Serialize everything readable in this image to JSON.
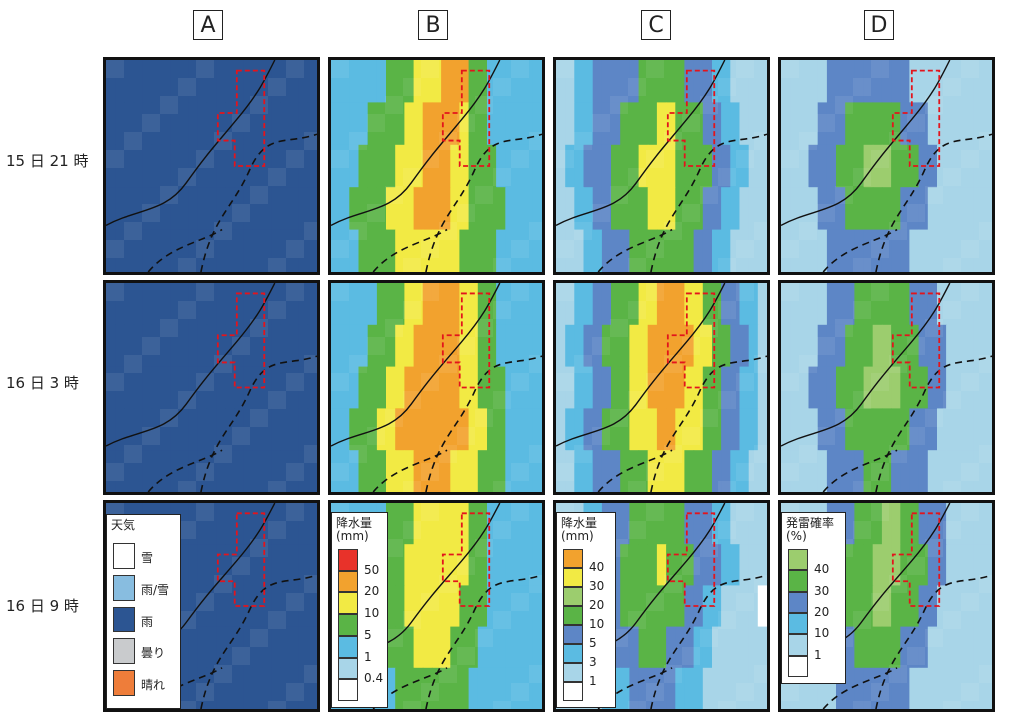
{
  "columns": [
    {
      "label": "A"
    },
    {
      "label": "B"
    },
    {
      "label": "C"
    },
    {
      "label": "D"
    }
  ],
  "rows": [
    {
      "label": "15 日 21 時"
    },
    {
      "label": "16 日 3 時"
    },
    {
      "label": "16 日 9 時"
    }
  ],
  "legends": {
    "A": {
      "title": "天気",
      "items": [
        {
          "label": "雪",
          "color": "#ffffff"
        },
        {
          "label": "雨/雪",
          "color": "#88bde0"
        },
        {
          "label": "雨",
          "color": "#2c5592"
        },
        {
          "label": "曇り",
          "color": "#c9cbcd"
        },
        {
          "label": "晴れ",
          "color": "#ee7d3a"
        }
      ]
    },
    "B": {
      "title": "降水量\n(mm)",
      "items": [
        {
          "label": "50",
          "color": "#e8322a"
        },
        {
          "label": "20",
          "color": "#f2a22e"
        },
        {
          "label": "10",
          "color": "#f2ea44"
        },
        {
          "label": "5",
          "color": "#5ab446"
        },
        {
          "label": "1",
          "color": "#5bbbe2"
        },
        {
          "label": "0.4",
          "color": "#a8d5e8"
        },
        {
          "label": "",
          "color": "#ffffff"
        }
      ]
    },
    "C": {
      "title": "降水量\n(mm)",
      "items": [
        {
          "label": "40",
          "color": "#f2a22e"
        },
        {
          "label": "30",
          "color": "#f2ea44"
        },
        {
          "label": "20",
          "color": "#9ccd6e"
        },
        {
          "label": "10",
          "color": "#5ab446"
        },
        {
          "label": "5",
          "color": "#5d86c6"
        },
        {
          "label": "3",
          "color": "#5bbbe2"
        },
        {
          "label": "1",
          "color": "#a8d5e8"
        },
        {
          "label": "",
          "color": "#ffffff"
        }
      ]
    },
    "D": {
      "title": "発雷確率\n(%)",
      "items": [
        {
          "label": "40",
          "color": "#9ccd6e"
        },
        {
          "label": "30",
          "color": "#5ab446"
        },
        {
          "label": "20",
          "color": "#5d86c6"
        },
        {
          "label": "10",
          "color": "#5bbbe2"
        },
        {
          "label": "1",
          "color": "#a8d5e8"
        },
        {
          "label": "",
          "color": "#ffffff"
        }
      ]
    }
  },
  "maps": {
    "A": [
      [
        "RRRRRRRRRRRRRRRRRRRRRRR",
        "RRRRRRRRRRRRRRRRRRRRRRR",
        "RRRRRRRRRRRRRRRRRRRRRRR",
        "RRRRRRRRRRRRRRRRRRRRRRR",
        "RRRRRRRRRRRRRRRRRRRRRRR"
      ],
      [
        "RRRRRRRRRRRRRRRRRRRRRRR",
        "RRRRRRRRRRRRRRRRRRRRRRR",
        "RRRRRRRRRRRRRRRRRRRRRRR",
        "RRRRRRRRRRRRRRRRRRRRRRR",
        "RRRRRRRRRRRRRRRRRRRRRRR"
      ],
      [
        "RRRRRRRRRRRRRRRRRRRRRRR",
        "RRRRRRRRRRRRRRRRRRRRRRR",
        "RRRRRRRRRRRRRRRRRRRRRRR",
        "RRRRRRRRRRRRRRRRRRRRRRR",
        "RRRRRRRRRRRRRRRRRRRRRRR"
      ]
    ],
    "B": [
      [
        "CCCCCCGGGYYYOOOGGCCCCCC",
        "CCCCGGGGYYOOOOYGGCCCCCC",
        "CCCGGGGYYYOOOYYGGGCCCCC",
        "CCGGGGYYYOOOOYYGGGGCCCC",
        "CCCGGGGYYYYYYYGGGGCCCCC"
      ],
      [
        "CCCCCGGGYYOOOOYYGGCCCCC",
        "CCCCGGGYYOOOOOYYGGCCCCC",
        "CCCGGGYYOOOOOOYYGGGCCCC",
        "CCGGGYYOOOOOOOOYYGGCCCC",
        "CCCGGGYYYOOOOYYYGGGCCCC"
      ],
      [
        "CCCCCCGGGYYYYYYGGCCCCCC",
        "CCCCCGGGYYYYYYYGGCCCCCC",
        "CCCCGGGGYYYYYYGGGCCCCCC",
        "CCCCCGGGGYYYYGGGCCCCCCC",
        "CCCCCCCGGGGGGGGCCCCCCCC"
      ]
    ],
    "C": [
      [
        "LLMMBBBBBGGGGGBBBMMLLLL",
        "LLMMBBBGGGGYYGGGBBMMLLL",
        "LMMBBBGGGYYYYGGGGBBMMLL",
        "LLMMBBGGGGYYYGGGBBMMLLL",
        "LLLMMBBBGGGGGGGBBMMLLLL"
      ],
      [
        "LLMMBBGGGYYOOOYYGGBBMML",
        "LMMBBGGGYYOOOOOYYGGBBML",
        "LLMMBBGGYYOOOOYYGGBBMML",
        "LMMBBGGGYYYOOYYYGGBBMML",
        "LLMMBBBGGGYYYYGGGBBMMLL"
      ],
      [
        "LLLMMBBBGGGGGGBBBMMLLLL",
        "LLMMBBBGGGGYGGGBBBMMLLL",
        "LLLMMBBGGGGGGGBBMMLLLL",
        "LLLLMMBBBGGGBBBMMLLLLLL",
        "LLLLLMMMBBBBBMMMLLLLLLL"
      ]
    ],
    "D": [
      [
        "LLLLLBBBBBBBBBLLLLLLLLL",
        "LLLLBBBGGGGGGBBBLLLLLLL",
        "LLLBBBGGGHHHGGGBBLLLLLL",
        "LLLLBBBGGGGGGBBBLLLLLLL",
        "LLLLLBBBBBBBBBLLLLLLLLL"
      ],
      [
        "LLLLLBBBGGGGGGBBBLLLLLL",
        "LLLLBBBGGGHHGGGBBBLLLLL",
        "LLLBBBGGGHHHHGGGBBLLLLL",
        "LLLLBBBGGGGGGGBBBLLLLLL",
        "LLLLLBBBBGGGBBBBLLLLLLL"
      ],
      [
        "LLLLLBBBGGGHHGGBBBLLLLL",
        "LLLLBBBGGGHHHGGGBBLLLLL",
        "LLLBBBGGGGHHGGGBBLLLLLL",
        "LLLLBBBBGGGGGBBBLLLLLLL",
        "LLLLLLBBBBBBBBLLLLLLLLL"
      ]
    ]
  }
}
